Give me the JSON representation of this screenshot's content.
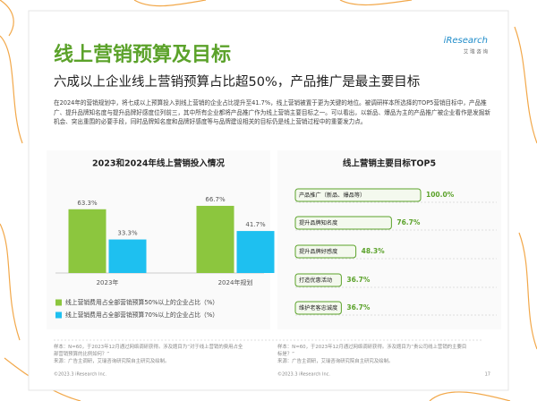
{
  "header": {
    "title": "线上营销预算及目标",
    "subtitle": "六成以上企业线上营销预算占比超50%，产品推广是最主要目标",
    "logo": "iResearch",
    "logo_sub": "艾 瑞 咨 询"
  },
  "body": "在2024年的营销规划中，将七成以上预算投入到线上营销的企业占比提升至41.7%，线上营销被置于更为关键的地位。被调研样本所选择的TOP5营销目标中，产品推广、提升品牌知名度与提升品牌好感度位列前三，其中所有企业都将产品推广作为线上营销主要目标之一。可以看出，以新品、爆品为主的产品推广被企业看作是发掘新机会、突出重围的必要手段，同时品牌知名度和品牌好感度等与品牌建设相关的目标仍是线上营销过程中的重要发力点。",
  "chart_data": [
    {
      "type": "bar",
      "title": "2023和2024年线上营销投入情况",
      "categories": [
        "2023年",
        "2024年规划"
      ],
      "ylim": [
        0,
        80
      ],
      "series": [
        {
          "name": "线上营销费用占全部营销预算50%以上的企业占比（%）",
          "color": "#8cc63e",
          "values": [
            63.3,
            66.7
          ],
          "value_labels": [
            "63.3%",
            "66.7%"
          ]
        },
        {
          "name": "线上营销费用占全部营销预算70%以上的企业占比（%）",
          "color": "#1ec0f0",
          "values": [
            33.3,
            41.7
          ],
          "value_labels": [
            "33.3%",
            "41.7%"
          ]
        }
      ]
    },
    {
      "type": "bar",
      "orientation": "horizontal",
      "title": "线上营销主要目标TOP5",
      "categories": [
        "产品推广（新品、爆品等）",
        "提升品牌知名度",
        "提升品牌好感度",
        "打造优惠活动",
        "维护老客忠诚度"
      ],
      "values": [
        100,
        76.7,
        48.3,
        36.7,
        36.7
      ],
      "value_labels": [
        "100.0%",
        "76.7%",
        "48.3%",
        "36.7%",
        "36.7%"
      ],
      "color": "#5ba22a",
      "xlim": [
        0,
        100
      ]
    }
  ],
  "notes": [
    {
      "sample": "样本：N=60，于2023年12月通过网络调研获得。涉及题目为“对于线上营销的费用占全部营销预算的比例如何？”",
      "source": "来源：广告主调研，艾瑞咨询研究院自主研究及绘制。"
    },
    {
      "sample": "样本：N=60，于2023年12月通过网络调研获得。涉及题目为“贵公司线上营销的主要目标是？”",
      "source": "来源：广告主调研，艾瑞咨询研究院自主研究及绘制。"
    }
  ],
  "footer": {
    "copyright": "©2023.3 iResearch Inc.",
    "page": "17"
  }
}
